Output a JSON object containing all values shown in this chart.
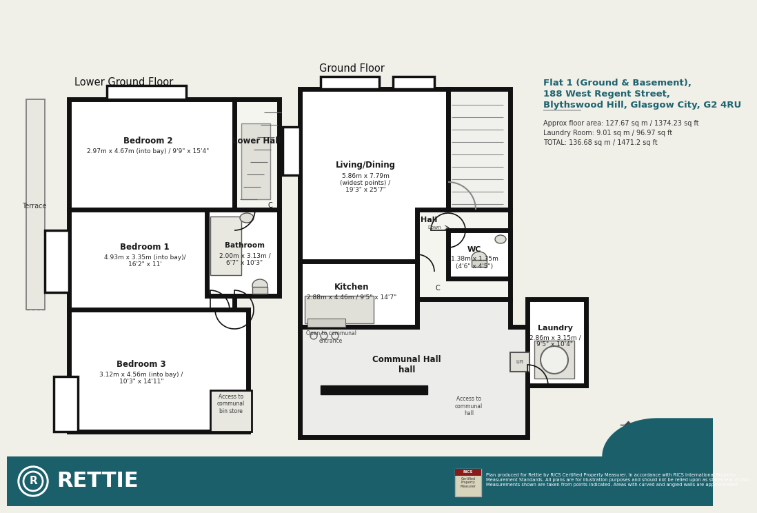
{
  "title_line1": "Flat 1 (Ground & Basement),",
  "title_line2": "188 West Regent Street,",
  "title_line3": "Blythswood Hill, Glasgow City, G2 4RU",
  "floor_info_line1": "Approx floor area: 127.67 sq m / 1374.23 sq ft",
  "floor_info_line2": "Laundry Room: 9.01 sq m / 96.97 sq ft",
  "floor_info_line3": "TOTAL: 136.68 sq m / 1471.2 sq ft",
  "lower_ground_label": "Lower Ground Floor",
  "ground_floor_label": "Ground Floor",
  "bg_color": "#f0efe8",
  "wall_color": "#111111",
  "fill_color": "#ffffff",
  "teal_color": "#1e6470",
  "footer_color": "#1a5f6a",
  "disclaimer": "Plan produced for Rettie by RICS Certified Property Measurer. In accordance with RICS International Property\nMeasurement Standards. All plans are for illustration purposes and should not be relied upon as statement of fact.\nMeasurements shown are taken from points indicated. Areas with curved and angled walls are approximated"
}
